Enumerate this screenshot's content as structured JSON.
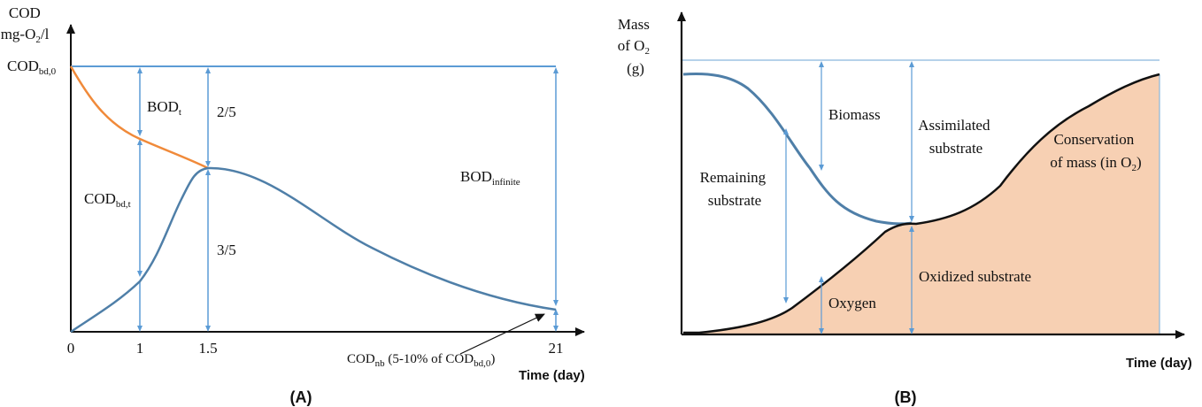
{
  "chart_data": [
    {
      "type": "line",
      "panel": "(A)",
      "ylabel": [
        "COD",
        "mg-O2/l"
      ],
      "ylabel_parts": {
        "line1": "COD",
        "line2_pre": "mg-O",
        "line2_sub": "2",
        "line2_post": "/l"
      },
      "xlabel": "Time (day)",
      "x_ticks": [
        "0",
        "1",
        "1.5",
        "21"
      ],
      "y_tick": {
        "main": "COD",
        "sub": "bd,0"
      },
      "series": [
        {
          "color": "#f08a3a",
          "points": [
            [
              0,
              1.0
            ],
            [
              0.25,
              0.9
            ],
            [
              0.5,
              0.82
            ],
            [
              0.75,
              0.76
            ],
            [
              1.0,
              0.71
            ],
            [
              1.25,
              0.67
            ],
            [
              1.5,
              0.63
            ]
          ]
        },
        {
          "color": "#4f7fa8",
          "points": [
            [
              0,
              0.0
            ],
            [
              0.5,
              0.09
            ],
            [
              1.0,
              0.2
            ],
            [
              1.25,
              0.42
            ],
            [
              1.5,
              0.63
            ],
            [
              5,
              0.5
            ],
            [
              10,
              0.32
            ],
            [
              15,
              0.16
            ],
            [
              21,
              0.06
            ]
          ]
        }
      ],
      "annotations": {
        "bod_t": {
          "main": "BOD",
          "sub": "t"
        },
        "cod_bd_t": {
          "main": "COD",
          "sub": "bd,t"
        },
        "two_fifths": "2/5",
        "three_fifths": "3/5",
        "bod_inf": {
          "main": "BOD",
          "sub": "infinite"
        },
        "cod_nb": {
          "main": "COD",
          "sub": "nb",
          "mid": " (5-10% of COD",
          "sub2": "bd,0",
          "end": ")"
        }
      },
      "caption": "(A)"
    },
    {
      "type": "area",
      "panel": "(B)",
      "ylabel": [
        "Mass",
        "of O2",
        "(g)"
      ],
      "ylabel_parts": {
        "line1": "Mass",
        "line2_pre": "of O",
        "line2_sub": "2",
        "line3": "(g)"
      },
      "xlabel": "Time (day)",
      "series": [
        {
          "name": "Remaining substrate",
          "color": "#4f7fa8"
        },
        {
          "name": "Oxygen",
          "color": "#111111",
          "fill": "#f7d0b3"
        }
      ],
      "annotations": {
        "biomass": "Biomass",
        "assimilated": [
          "Assimilated",
          "substrate"
        ],
        "remaining": [
          "Remaining",
          "substrate"
        ],
        "oxygen": "Oxygen",
        "oxidized": "Oxidized substrate",
        "conservation": [
          "Conservation",
          "of mass (in O",
          "2",
          ")"
        ]
      },
      "caption": "(B)"
    }
  ],
  "colors": {
    "blue": "#4f7fa8",
    "orange": "#f08a3a",
    "fill": "#f7d0b3",
    "axis": "#111111"
  }
}
